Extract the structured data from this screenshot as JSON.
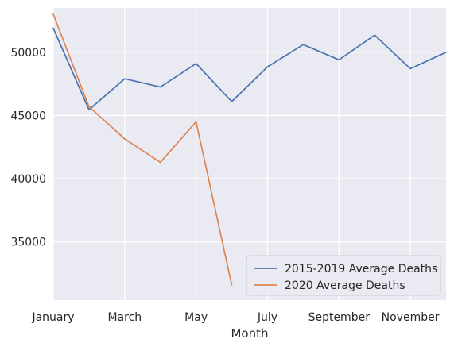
{
  "chart_data": {
    "type": "line",
    "title": "",
    "xlabel": "Month",
    "ylabel": "",
    "x": [
      "January",
      "February",
      "March",
      "April",
      "May",
      "June",
      "July",
      "August",
      "September",
      "October",
      "November",
      "December"
    ],
    "x_tick_labels": [
      "January",
      "March",
      "May",
      "July",
      "September",
      "November"
    ],
    "y_ticks": [
      35000,
      40000,
      45000,
      50000
    ],
    "ylim": [
      30400,
      53500
    ],
    "grid": true,
    "legend_position": "lower-right",
    "series": [
      {
        "name": "2015-2019 Average Deaths",
        "color": "#4c72b0",
        "values": [
          51900,
          45450,
          47900,
          47250,
          49100,
          46100,
          48850,
          50600,
          49400,
          51350,
          48700,
          50000
        ]
      },
      {
        "name": "2020 Average Deaths",
        "color": "#dd8452",
        "values": [
          53000,
          45700,
          43150,
          41300,
          44500,
          31600,
          null,
          null,
          null,
          null,
          null,
          null
        ]
      }
    ]
  }
}
